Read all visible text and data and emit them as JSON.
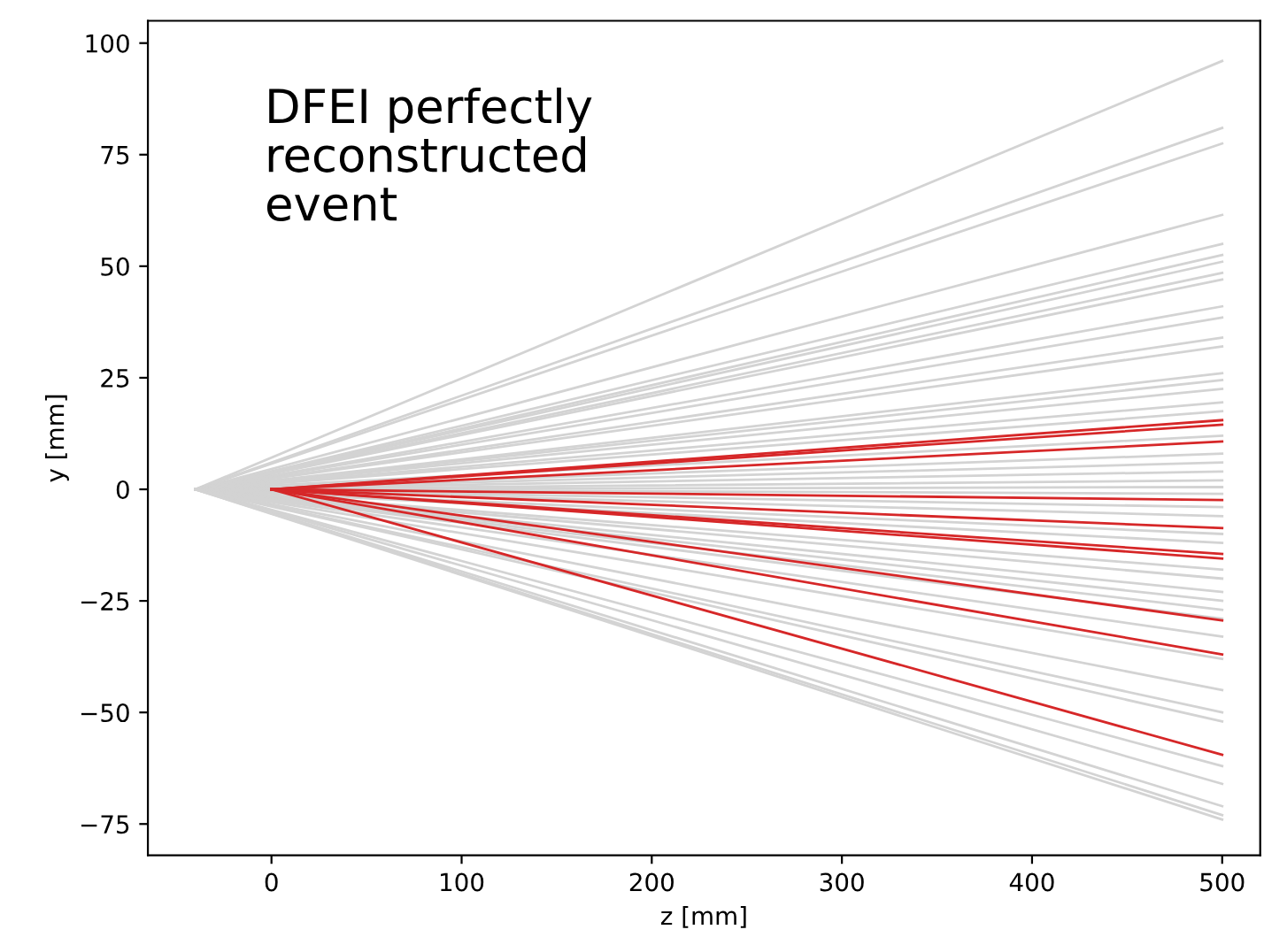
{
  "chart_data": {
    "type": "line",
    "xlabel": "z [mm]",
    "ylabel": "y [mm]",
    "annotations": [
      "DFEI perfectly\nreconstructed\nevent"
    ],
    "xlim": [
      -65,
      520
    ],
    "ylim": [
      -82,
      105
    ],
    "xticks": [
      0,
      100,
      200,
      300,
      400,
      500
    ],
    "yticks": [
      -75,
      -50,
      -25,
      0,
      25,
      50,
      75,
      100
    ],
    "grid": false,
    "marker": "none",
    "line_style": "solid",
    "series": [
      {
        "color": "#d3d3d3",
        "x": [
          -40,
          500
        ],
        "values": [
          0,
          96
        ]
      },
      {
        "color": "#d3d3d3",
        "x": [
          -40,
          500
        ],
        "values": [
          0,
          81
        ]
      },
      {
        "color": "#d3d3d3",
        "x": [
          -40,
          500
        ],
        "values": [
          0,
          77.5
        ]
      },
      {
        "color": "#d3d3d3",
        "x": [
          -40,
          500
        ],
        "values": [
          0,
          61.5
        ]
      },
      {
        "color": "#d3d3d3",
        "x": [
          -40,
          500
        ],
        "values": [
          0,
          55
        ]
      },
      {
        "color": "#d3d3d3",
        "x": [
          -40,
          500
        ],
        "values": [
          0,
          52.5
        ]
      },
      {
        "color": "#d3d3d3",
        "x": [
          -40,
          500
        ],
        "values": [
          0,
          51
        ]
      },
      {
        "color": "#d3d3d3",
        "x": [
          -40,
          500
        ],
        "values": [
          0,
          48.5
        ]
      },
      {
        "color": "#d3d3d3",
        "x": [
          -40,
          500
        ],
        "values": [
          0,
          47
        ]
      },
      {
        "color": "#d3d3d3",
        "x": [
          -40,
          500
        ],
        "values": [
          0,
          41
        ]
      },
      {
        "color": "#d3d3d3",
        "x": [
          -40,
          500
        ],
        "values": [
          0,
          38.5
        ]
      },
      {
        "color": "#d3d3d3",
        "x": [
          -40,
          500
        ],
        "values": [
          0,
          34
        ]
      },
      {
        "color": "#d3d3d3",
        "x": [
          -40,
          500
        ],
        "values": [
          0,
          32
        ]
      },
      {
        "color": "#d3d3d3",
        "x": [
          -40,
          500
        ],
        "values": [
          0,
          26
        ]
      },
      {
        "color": "#d3d3d3",
        "x": [
          -40,
          500
        ],
        "values": [
          0,
          24.5
        ]
      },
      {
        "color": "#d3d3d3",
        "x": [
          -40,
          500
        ],
        "values": [
          0,
          22.5
        ]
      },
      {
        "color": "#d3d3d3",
        "x": [
          -40,
          500
        ],
        "values": [
          0,
          19.5
        ]
      },
      {
        "color": "#d3d3d3",
        "x": [
          -40,
          500
        ],
        "values": [
          0,
          17.5
        ]
      },
      {
        "color": "#d3d3d3",
        "x": [
          -40,
          500
        ],
        "values": [
          0,
          12
        ]
      },
      {
        "color": "#d3d3d3",
        "x": [
          -40,
          500
        ],
        "values": [
          0,
          8
        ]
      },
      {
        "color": "#d3d3d3",
        "x": [
          -40,
          500
        ],
        "values": [
          0,
          6
        ]
      },
      {
        "color": "#d3d3d3",
        "x": [
          -40,
          500
        ],
        "values": [
          0,
          4
        ]
      },
      {
        "color": "#d3d3d3",
        "x": [
          -40,
          500
        ],
        "values": [
          0,
          2
        ]
      },
      {
        "color": "#d3d3d3",
        "x": [
          -40,
          500
        ],
        "values": [
          0,
          0.5
        ]
      },
      {
        "color": "#d3d3d3",
        "x": [
          -40,
          500
        ],
        "values": [
          0,
          -1
        ]
      },
      {
        "color": "#d3d3d3",
        "x": [
          -40,
          500
        ],
        "values": [
          0,
          -4
        ]
      },
      {
        "color": "#d3d3d3",
        "x": [
          -40,
          500
        ],
        "values": [
          0,
          -6
        ]
      },
      {
        "color": "#d3d3d3",
        "x": [
          -40,
          500
        ],
        "values": [
          0,
          -10
        ]
      },
      {
        "color": "#d3d3d3",
        "x": [
          -40,
          500
        ],
        "values": [
          0,
          -12
        ]
      },
      {
        "color": "#d3d3d3",
        "x": [
          -40,
          500
        ],
        "values": [
          0,
          -18
        ]
      },
      {
        "color": "#d3d3d3",
        "x": [
          -40,
          500
        ],
        "values": [
          0,
          -20
        ]
      },
      {
        "color": "#d3d3d3",
        "x": [
          -40,
          500
        ],
        "values": [
          0,
          -23
        ]
      },
      {
        "color": "#d3d3d3",
        "x": [
          -40,
          500
        ],
        "values": [
          0,
          -25
        ]
      },
      {
        "color": "#d3d3d3",
        "x": [
          -40,
          500
        ],
        "values": [
          0,
          -27
        ]
      },
      {
        "color": "#d3d3d3",
        "x": [
          -40,
          500
        ],
        "values": [
          0,
          -29
        ]
      },
      {
        "color": "#d3d3d3",
        "x": [
          -40,
          500
        ],
        "values": [
          0,
          -33
        ]
      },
      {
        "color": "#d3d3d3",
        "x": [
          -40,
          500
        ],
        "values": [
          0,
          -38
        ]
      },
      {
        "color": "#d3d3d3",
        "x": [
          -40,
          500
        ],
        "values": [
          0,
          -45
        ]
      },
      {
        "color": "#d3d3d3",
        "x": [
          -40,
          500
        ],
        "values": [
          0,
          -50
        ]
      },
      {
        "color": "#d3d3d3",
        "x": [
          -40,
          500
        ],
        "values": [
          0,
          -52
        ]
      },
      {
        "color": "#d3d3d3",
        "x": [
          -40,
          500
        ],
        "values": [
          0,
          -62
        ]
      },
      {
        "color": "#d3d3d3",
        "x": [
          -40,
          500
        ],
        "values": [
          0,
          -66
        ]
      },
      {
        "color": "#d3d3d3",
        "x": [
          -40,
          500
        ],
        "values": [
          0,
          -71
        ]
      },
      {
        "color": "#d3d3d3",
        "x": [
          -40,
          500
        ],
        "values": [
          0,
          -73
        ]
      },
      {
        "color": "#d3d3d3",
        "x": [
          -40,
          500
        ],
        "values": [
          0,
          -74
        ]
      },
      {
        "color": "#d62728",
        "x": [
          0,
          500
        ],
        "values": [
          0,
          15.5
        ]
      },
      {
        "color": "#d62728",
        "x": [
          0,
          500
        ],
        "values": [
          0,
          14.5
        ]
      },
      {
        "color": "#d62728",
        "x": [
          0,
          500
        ],
        "values": [
          0,
          10.7
        ]
      },
      {
        "color": "#d62728",
        "x": [
          0,
          500
        ],
        "values": [
          0,
          -2.4
        ]
      },
      {
        "color": "#d62728",
        "x": [
          0,
          500
        ],
        "values": [
          0,
          -8.7
        ]
      },
      {
        "color": "#d62728",
        "x": [
          0,
          500
        ],
        "values": [
          0,
          -14.5
        ]
      },
      {
        "color": "#d62728",
        "x": [
          0,
          500
        ],
        "values": [
          0,
          -15.5
        ]
      },
      {
        "color": "#d62728",
        "x": [
          0,
          500
        ],
        "values": [
          0,
          -29.4
        ]
      },
      {
        "color": "#d62728",
        "x": [
          0,
          500
        ],
        "values": [
          0,
          -37
        ]
      },
      {
        "color": "#d62728",
        "x": [
          0,
          500
        ],
        "values": [
          0,
          -59.5
        ]
      }
    ]
  }
}
